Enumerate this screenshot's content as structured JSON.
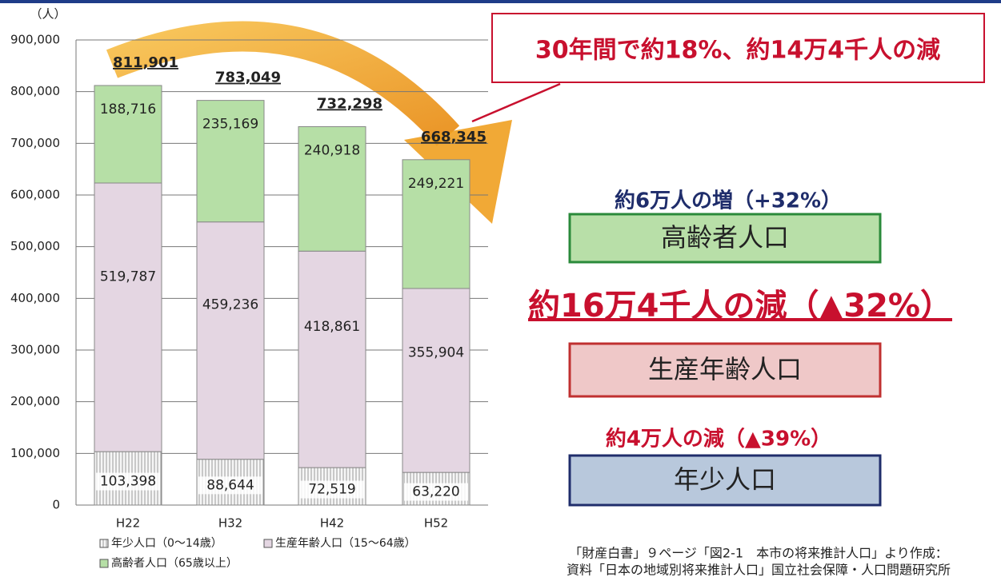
{
  "chart_data": {
    "type": "stacked-bar",
    "unit_label": "（人）",
    "categories": [
      "H22",
      "H32",
      "H42",
      "H52"
    ],
    "series": [
      {
        "name": "年少人口（0～14歳）",
        "color": "#f4f4f4",
        "values": [
          103398,
          88644,
          72519,
          63220
        ],
        "value_labels": [
          "103,398",
          "88,644",
          "72,519",
          "63,220"
        ]
      },
      {
        "name": "生産年齢人口（15～64歳）",
        "color": "#e4d6e2",
        "values": [
          519787,
          459236,
          418861,
          355904
        ],
        "value_labels": [
          "519,787",
          "459,236",
          "418,861",
          "355,904"
        ]
      },
      {
        "name": "高齢者人口（65歳以上）",
        "color": "#b6dfa6",
        "values": [
          188716,
          235169,
          240918,
          249221
        ],
        "value_labels": [
          "188,716",
          "235,169",
          "240,918",
          "249,221"
        ]
      }
    ],
    "totals": {
      "values": [
        811901,
        783049,
        732298,
        668345
      ],
      "value_labels": [
        "811,901",
        "783,049",
        "732,298",
        "668,345"
      ]
    },
    "ylim": [
      0,
      900000
    ],
    "yticks": [
      0,
      {
        "value": 100000,
        "label": "100,000"
      },
      {
        "value": 200000,
        "label": "200,000"
      },
      {
        "value": 300000,
        "label": "300,000"
      },
      {
        "value": 400000,
        "label": "400,000"
      },
      {
        "value": 500000,
        "label": "500,000"
      },
      {
        "value": 600000,
        "label": "600,000"
      },
      {
        "value": 700000,
        "label": "700,000"
      },
      {
        "value": 800000,
        "label": "800,000"
      },
      {
        "value": 900000,
        "label": "900,000"
      }
    ],
    "grid": true,
    "annotations": {
      "callout": "30年間で約18%、約14万4千人の減",
      "elderly_change": "約6万人の増（+32%）",
      "elderly_box": "高齢者人口",
      "working_change": "約16万4千人の減（▲32%）",
      "working_box": "生産年齢人口",
      "young_change": "約4万人の減（▲39%）",
      "young_box": "年少人口"
    },
    "source": [
      "「財産白書」９ページ「図2-1　本市の将来推計人口」より作成：",
      "資料「日本の地域別将来推計人口」国立社会保障・人口問題研究所"
    ]
  }
}
